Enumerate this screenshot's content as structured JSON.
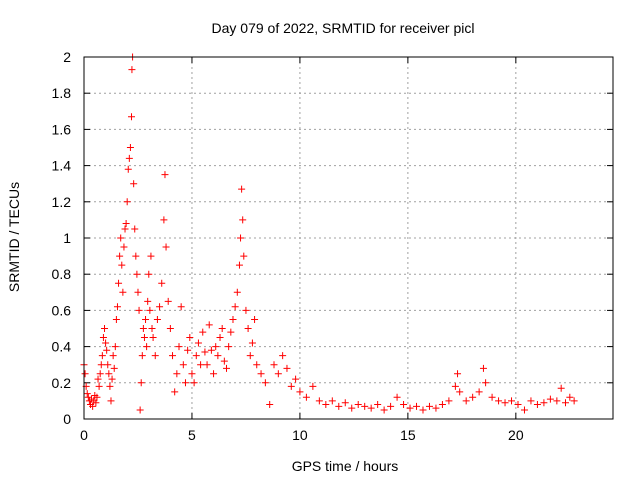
{
  "chart_data": {
    "type": "scatter",
    "title": "Day 079 of 2022, SRMTID for receiver picl",
    "xlabel": "GPS time / hours",
    "ylabel": "SRMTID / TECUs",
    "xlim": [
      0,
      24.5
    ],
    "ylim": [
      0,
      2
    ],
    "xticks": [
      0,
      5,
      10,
      15,
      20
    ],
    "xtick_labels": [
      "0",
      "5",
      "10",
      "15",
      "20"
    ],
    "yticks": [
      0,
      0.2,
      0.4,
      0.6,
      0.8,
      1,
      1.2,
      1.4,
      1.6,
      1.8,
      2
    ],
    "ytick_labels": [
      "0",
      "0.2",
      "0.4",
      "0.6",
      "0.8",
      "1",
      "1.2",
      "1.4",
      "1.6",
      "1.8",
      "2"
    ],
    "grid": true,
    "marker": "+",
    "color": "#ff0000",
    "series": [
      {
        "name": "SRMTID",
        "points": [
          [
            0.0,
            0.3
          ],
          [
            0.05,
            0.25
          ],
          [
            0.1,
            0.18
          ],
          [
            0.15,
            0.14
          ],
          [
            0.2,
            0.12
          ],
          [
            0.25,
            0.1
          ],
          [
            0.3,
            0.08
          ],
          [
            0.35,
            0.11
          ],
          [
            0.4,
            0.07
          ],
          [
            0.45,
            0.1
          ],
          [
            0.5,
            0.13
          ],
          [
            0.55,
            0.09
          ],
          [
            0.6,
            0.12
          ],
          [
            0.65,
            0.22
          ],
          [
            0.7,
            0.18
          ],
          [
            0.75,
            0.25
          ],
          [
            0.8,
            0.3
          ],
          [
            0.85,
            0.35
          ],
          [
            0.9,
            0.45
          ],
          [
            0.95,
            0.5
          ],
          [
            1.0,
            0.42
          ],
          [
            1.05,
            0.38
          ],
          [
            1.1,
            0.3
          ],
          [
            1.15,
            0.25
          ],
          [
            1.2,
            0.18
          ],
          [
            1.25,
            0.1
          ],
          [
            1.3,
            0.22
          ],
          [
            1.35,
            0.35
          ],
          [
            1.4,
            0.28
          ],
          [
            1.45,
            0.4
          ],
          [
            1.5,
            0.55
          ],
          [
            1.55,
            0.62
          ],
          [
            1.6,
            0.75
          ],
          [
            1.65,
            0.9
          ],
          [
            1.7,
            1.0
          ],
          [
            1.75,
            0.85
          ],
          [
            1.8,
            0.7
          ],
          [
            1.85,
            0.95
          ],
          [
            1.9,
            1.05
          ],
          [
            1.95,
            1.08
          ],
          [
            2.0,
            1.2
          ],
          [
            2.05,
            1.38
          ],
          [
            2.1,
            1.44
          ],
          [
            2.15,
            1.5
          ],
          [
            2.2,
            1.67
          ],
          [
            2.22,
            1.93
          ],
          [
            2.25,
            2.0
          ],
          [
            2.3,
            1.3
          ],
          [
            2.35,
            1.05
          ],
          [
            2.4,
            0.9
          ],
          [
            2.45,
            0.8
          ],
          [
            2.5,
            0.7
          ],
          [
            2.55,
            0.6
          ],
          [
            2.6,
            0.05
          ],
          [
            2.65,
            0.2
          ],
          [
            2.7,
            0.35
          ],
          [
            2.75,
            0.5
          ],
          [
            2.8,
            0.45
          ],
          [
            2.85,
            0.55
          ],
          [
            2.9,
            0.4
          ],
          [
            2.95,
            0.65
          ],
          [
            3.0,
            0.8
          ],
          [
            3.05,
            0.6
          ],
          [
            3.1,
            0.9
          ],
          [
            3.15,
            0.5
          ],
          [
            3.2,
            0.45
          ],
          [
            3.3,
            0.35
          ],
          [
            3.4,
            0.55
          ],
          [
            3.5,
            0.62
          ],
          [
            3.6,
            0.75
          ],
          [
            3.7,
            1.1
          ],
          [
            3.75,
            1.35
          ],
          [
            3.8,
            0.95
          ],
          [
            3.9,
            0.65
          ],
          [
            4.0,
            0.5
          ],
          [
            4.1,
            0.35
          ],
          [
            4.2,
            0.15
          ],
          [
            4.3,
            0.25
          ],
          [
            4.4,
            0.4
          ],
          [
            4.5,
            0.62
          ],
          [
            4.6,
            0.3
          ],
          [
            4.7,
            0.2
          ],
          [
            4.8,
            0.38
          ],
          [
            4.9,
            0.45
          ],
          [
            5.0,
            0.25
          ],
          [
            5.1,
            0.2
          ],
          [
            5.2,
            0.35
          ],
          [
            5.3,
            0.42
          ],
          [
            5.4,
            0.3
          ],
          [
            5.5,
            0.48
          ],
          [
            5.6,
            0.37
          ],
          [
            5.7,
            0.3
          ],
          [
            5.8,
            0.52
          ],
          [
            5.9,
            0.38
          ],
          [
            6.0,
            0.25
          ],
          [
            6.1,
            0.4
          ],
          [
            6.2,
            0.35
          ],
          [
            6.3,
            0.45
          ],
          [
            6.4,
            0.5
          ],
          [
            6.5,
            0.32
          ],
          [
            6.6,
            0.28
          ],
          [
            6.7,
            0.4
          ],
          [
            6.8,
            0.48
          ],
          [
            6.9,
            0.55
          ],
          [
            7.0,
            0.62
          ],
          [
            7.1,
            0.7
          ],
          [
            7.2,
            0.85
          ],
          [
            7.25,
            1.0
          ],
          [
            7.3,
            1.27
          ],
          [
            7.35,
            1.1
          ],
          [
            7.4,
            0.9
          ],
          [
            7.5,
            0.6
          ],
          [
            7.6,
            0.5
          ],
          [
            7.7,
            0.35
          ],
          [
            7.8,
            0.42
          ],
          [
            7.9,
            0.55
          ],
          [
            8.0,
            0.3
          ],
          [
            8.2,
            0.25
          ],
          [
            8.4,
            0.2
          ],
          [
            8.6,
            0.08
          ],
          [
            8.8,
            0.3
          ],
          [
            9.0,
            0.25
          ],
          [
            9.2,
            0.35
          ],
          [
            9.4,
            0.28
          ],
          [
            9.6,
            0.18
          ],
          [
            9.8,
            0.22
          ],
          [
            10.0,
            0.15
          ],
          [
            10.3,
            0.12
          ],
          [
            10.6,
            0.18
          ],
          [
            10.9,
            0.1
          ],
          [
            11.2,
            0.08
          ],
          [
            11.5,
            0.1
          ],
          [
            11.8,
            0.07
          ],
          [
            12.1,
            0.09
          ],
          [
            12.4,
            0.06
          ],
          [
            12.7,
            0.08
          ],
          [
            13.0,
            0.07
          ],
          [
            13.3,
            0.06
          ],
          [
            13.6,
            0.08
          ],
          [
            13.9,
            0.05
          ],
          [
            14.2,
            0.07
          ],
          [
            14.5,
            0.12
          ],
          [
            14.8,
            0.08
          ],
          [
            15.1,
            0.06
          ],
          [
            15.4,
            0.07
          ],
          [
            15.7,
            0.05
          ],
          [
            16.0,
            0.07
          ],
          [
            16.3,
            0.06
          ],
          [
            16.6,
            0.08
          ],
          [
            16.9,
            0.1
          ],
          [
            17.2,
            0.18
          ],
          [
            17.3,
            0.25
          ],
          [
            17.4,
            0.15
          ],
          [
            17.7,
            0.1
          ],
          [
            18.0,
            0.12
          ],
          [
            18.3,
            0.15
          ],
          [
            18.5,
            0.28
          ],
          [
            18.6,
            0.2
          ],
          [
            18.9,
            0.12
          ],
          [
            19.2,
            0.1
          ],
          [
            19.5,
            0.09
          ],
          [
            19.8,
            0.1
          ],
          [
            20.1,
            0.08
          ],
          [
            20.4,
            0.05
          ],
          [
            20.7,
            0.1
          ],
          [
            21.0,
            0.08
          ],
          [
            21.3,
            0.09
          ],
          [
            21.6,
            0.11
          ],
          [
            21.9,
            0.1
          ],
          [
            22.1,
            0.17
          ],
          [
            22.3,
            0.09
          ],
          [
            22.5,
            0.12
          ],
          [
            22.7,
            0.1
          ]
        ]
      }
    ]
  }
}
